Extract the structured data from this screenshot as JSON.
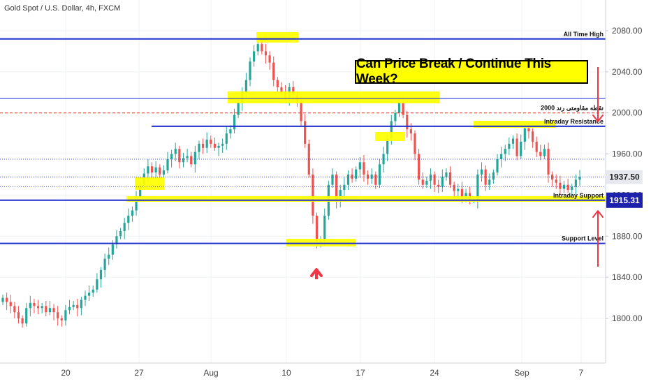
{
  "header": {
    "symbol": "Gold Spot / U.S. Dollar, 4h, FXCM"
  },
  "callout": {
    "text": "Can Price Break / Continue This Week?"
  },
  "colors": {
    "up": "#26a69a",
    "down": "#ef5350",
    "level_line": "#1f2fd0",
    "highlight": "#ffff00",
    "arrow": "#f23645",
    "price_badge": "#1e22aa",
    "dashed": "#e53935"
  },
  "chart_data": {
    "type": "candlestick",
    "title": "Gold Spot / U.S. Dollar, 4h, FXCM",
    "x_tick_labels": [
      "20",
      "27",
      "Aug",
      "10",
      "17",
      "24",
      "Sep",
      "7"
    ],
    "y_ticks": [
      1800,
      1840,
      1880,
      1920,
      1960,
      2000,
      2040,
      2080
    ],
    "y_tick_labels": [
      "1800.00",
      "1840.00",
      "1880.00",
      "1920.00",
      "1960.00",
      "2000.00",
      "2040.00",
      "2080.00"
    ],
    "ylim": [
      1772,
      2117
    ],
    "grid": true,
    "levels": [
      {
        "label": "All Time High",
        "price": 2072
      },
      {
        "label": "",
        "price": 2014
      },
      {
        "label": "2000 نقطه مقاومتی رند",
        "price": 2000,
        "style": "dashed"
      },
      {
        "label": "Intraday Resistance",
        "price": 1987
      },
      {
        "label": "Intraday Support",
        "price": 1915
      },
      {
        "label": "Support Level",
        "price": 1873
      }
    ],
    "last_price": "1937.50",
    "support_price": "1915.31",
    "closes": [
      1820,
      1816,
      1812,
      1806,
      1800,
      1795,
      1810,
      1815,
      1812,
      1810,
      1812,
      1806,
      1810,
      1806,
      1800,
      1798,
      1808,
      1811,
      1813,
      1810,
      1818,
      1822,
      1825,
      1828,
      1838,
      1847,
      1858,
      1862,
      1872,
      1880,
      1885,
      1893,
      1900,
      1905,
      1918,
      1930,
      1941,
      1948,
      1942,
      1947,
      1940,
      1944,
      1955,
      1960,
      1965,
      1952,
      1956,
      1958,
      1950,
      1962,
      1970,
      1966,
      1974,
      1970,
      1966,
      1968,
      1970,
      1980,
      1984,
      1998,
      2010,
      2020,
      2032,
      2050,
      2060,
      2067,
      2060,
      2056,
      2049,
      2032,
      2025,
      2020,
      2015,
      2025,
      2018,
      2012,
      1992,
      1970,
      1940,
      1900,
      1875,
      1875,
      1900,
      1930,
      1940,
      1915,
      1925,
      1930,
      1940,
      1936,
      1945,
      1952,
      1940,
      1936,
      1940,
      1930,
      1950,
      1960,
      1975,
      1992,
      2000,
      2010,
      1998,
      1984,
      1980,
      1960,
      1935,
      1930,
      1934,
      1940,
      1930,
      1928,
      1938,
      1942,
      1930,
      1924,
      1926,
      1918,
      1922,
      1915,
      1915,
      1940,
      1945,
      1930,
      1935,
      1942,
      1955,
      1960,
      1965,
      1970,
      1975,
      1958,
      1972,
      1985,
      1982,
      1972,
      1962,
      1958,
      1965,
      1940,
      1935,
      1932,
      1926,
      1930,
      1925,
      1928,
      1935,
      1937.5
    ]
  }
}
